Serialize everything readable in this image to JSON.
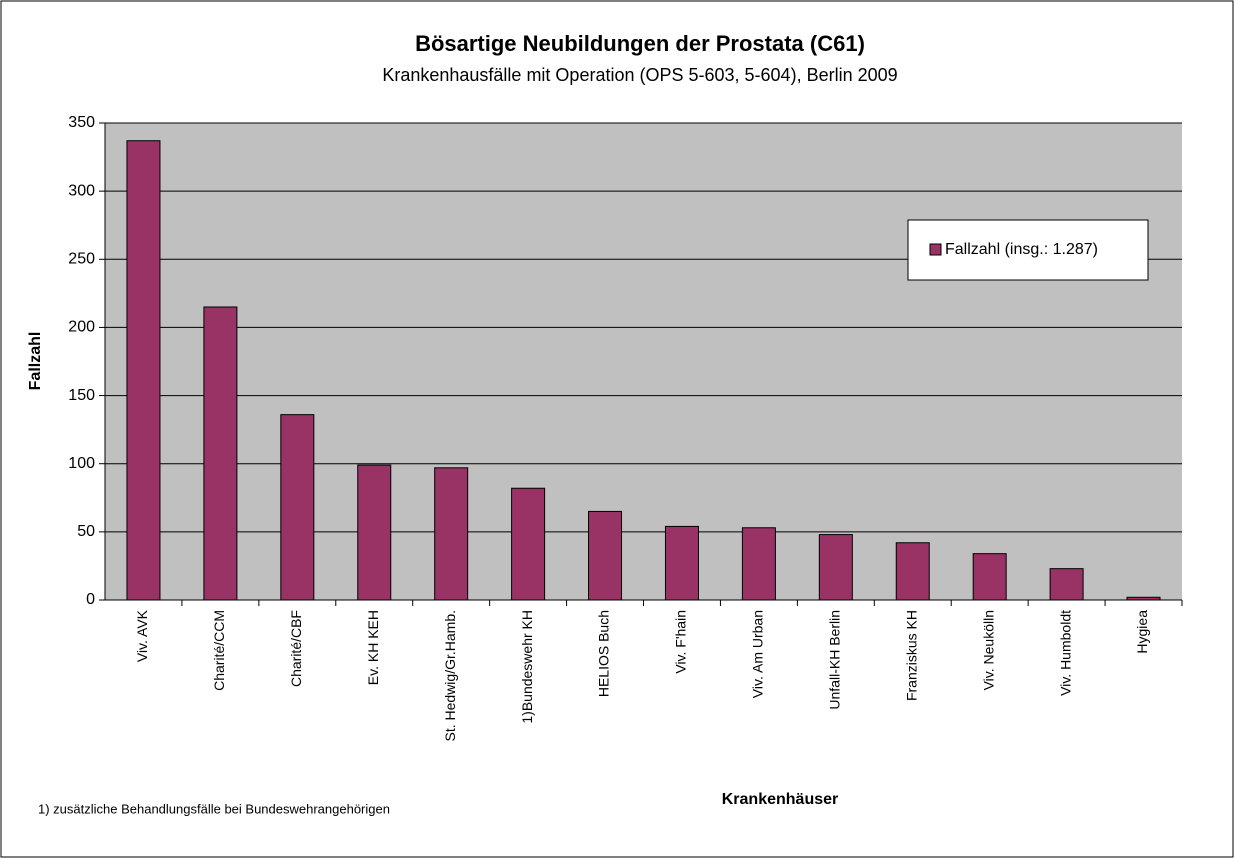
{
  "chart_data": {
    "type": "bar",
    "title": "Bösartige Neubildungen der Prostata (C61)",
    "subtitle": "Krankenhausfälle mit Operation (OPS 5-603, 5-604), Berlin 2009",
    "x_label": "Krankenhäuser",
    "y_label": "Fallzahl",
    "annotation": "1) zusätzliche Behandlungsfälle bei Bundeswehrangehörigen",
    "categories": [
      "Viv. AVK",
      "Charité/CCM",
      "Charité/CBF",
      "Ev. KH KEH",
      "St. Hedwig/Gr.Hamb.",
      "1)Bundeswehr KH",
      "HELIOS Buch",
      "Viv. F'hain",
      "Viv. Am Urban",
      "Unfall-KH Berlin",
      "Franziskus KH",
      "Viv. Neukölln",
      "Viv. Humboldt",
      "Hygiea"
    ],
    "series": [
      {
        "name": "Fallzahl (insg.: 1.287)",
        "color": "#993366",
        "values": [
          337,
          215,
          136,
          99,
          97,
          82,
          65,
          54,
          53,
          48,
          42,
          34,
          23,
          2
        ]
      }
    ],
    "ylim": [
      0,
      350
    ],
    "yticks": [
      0,
      50,
      100,
      150,
      200,
      250,
      300,
      350
    ],
    "grid": true,
    "legend": "upper right",
    "background": "#c0c0c0"
  }
}
